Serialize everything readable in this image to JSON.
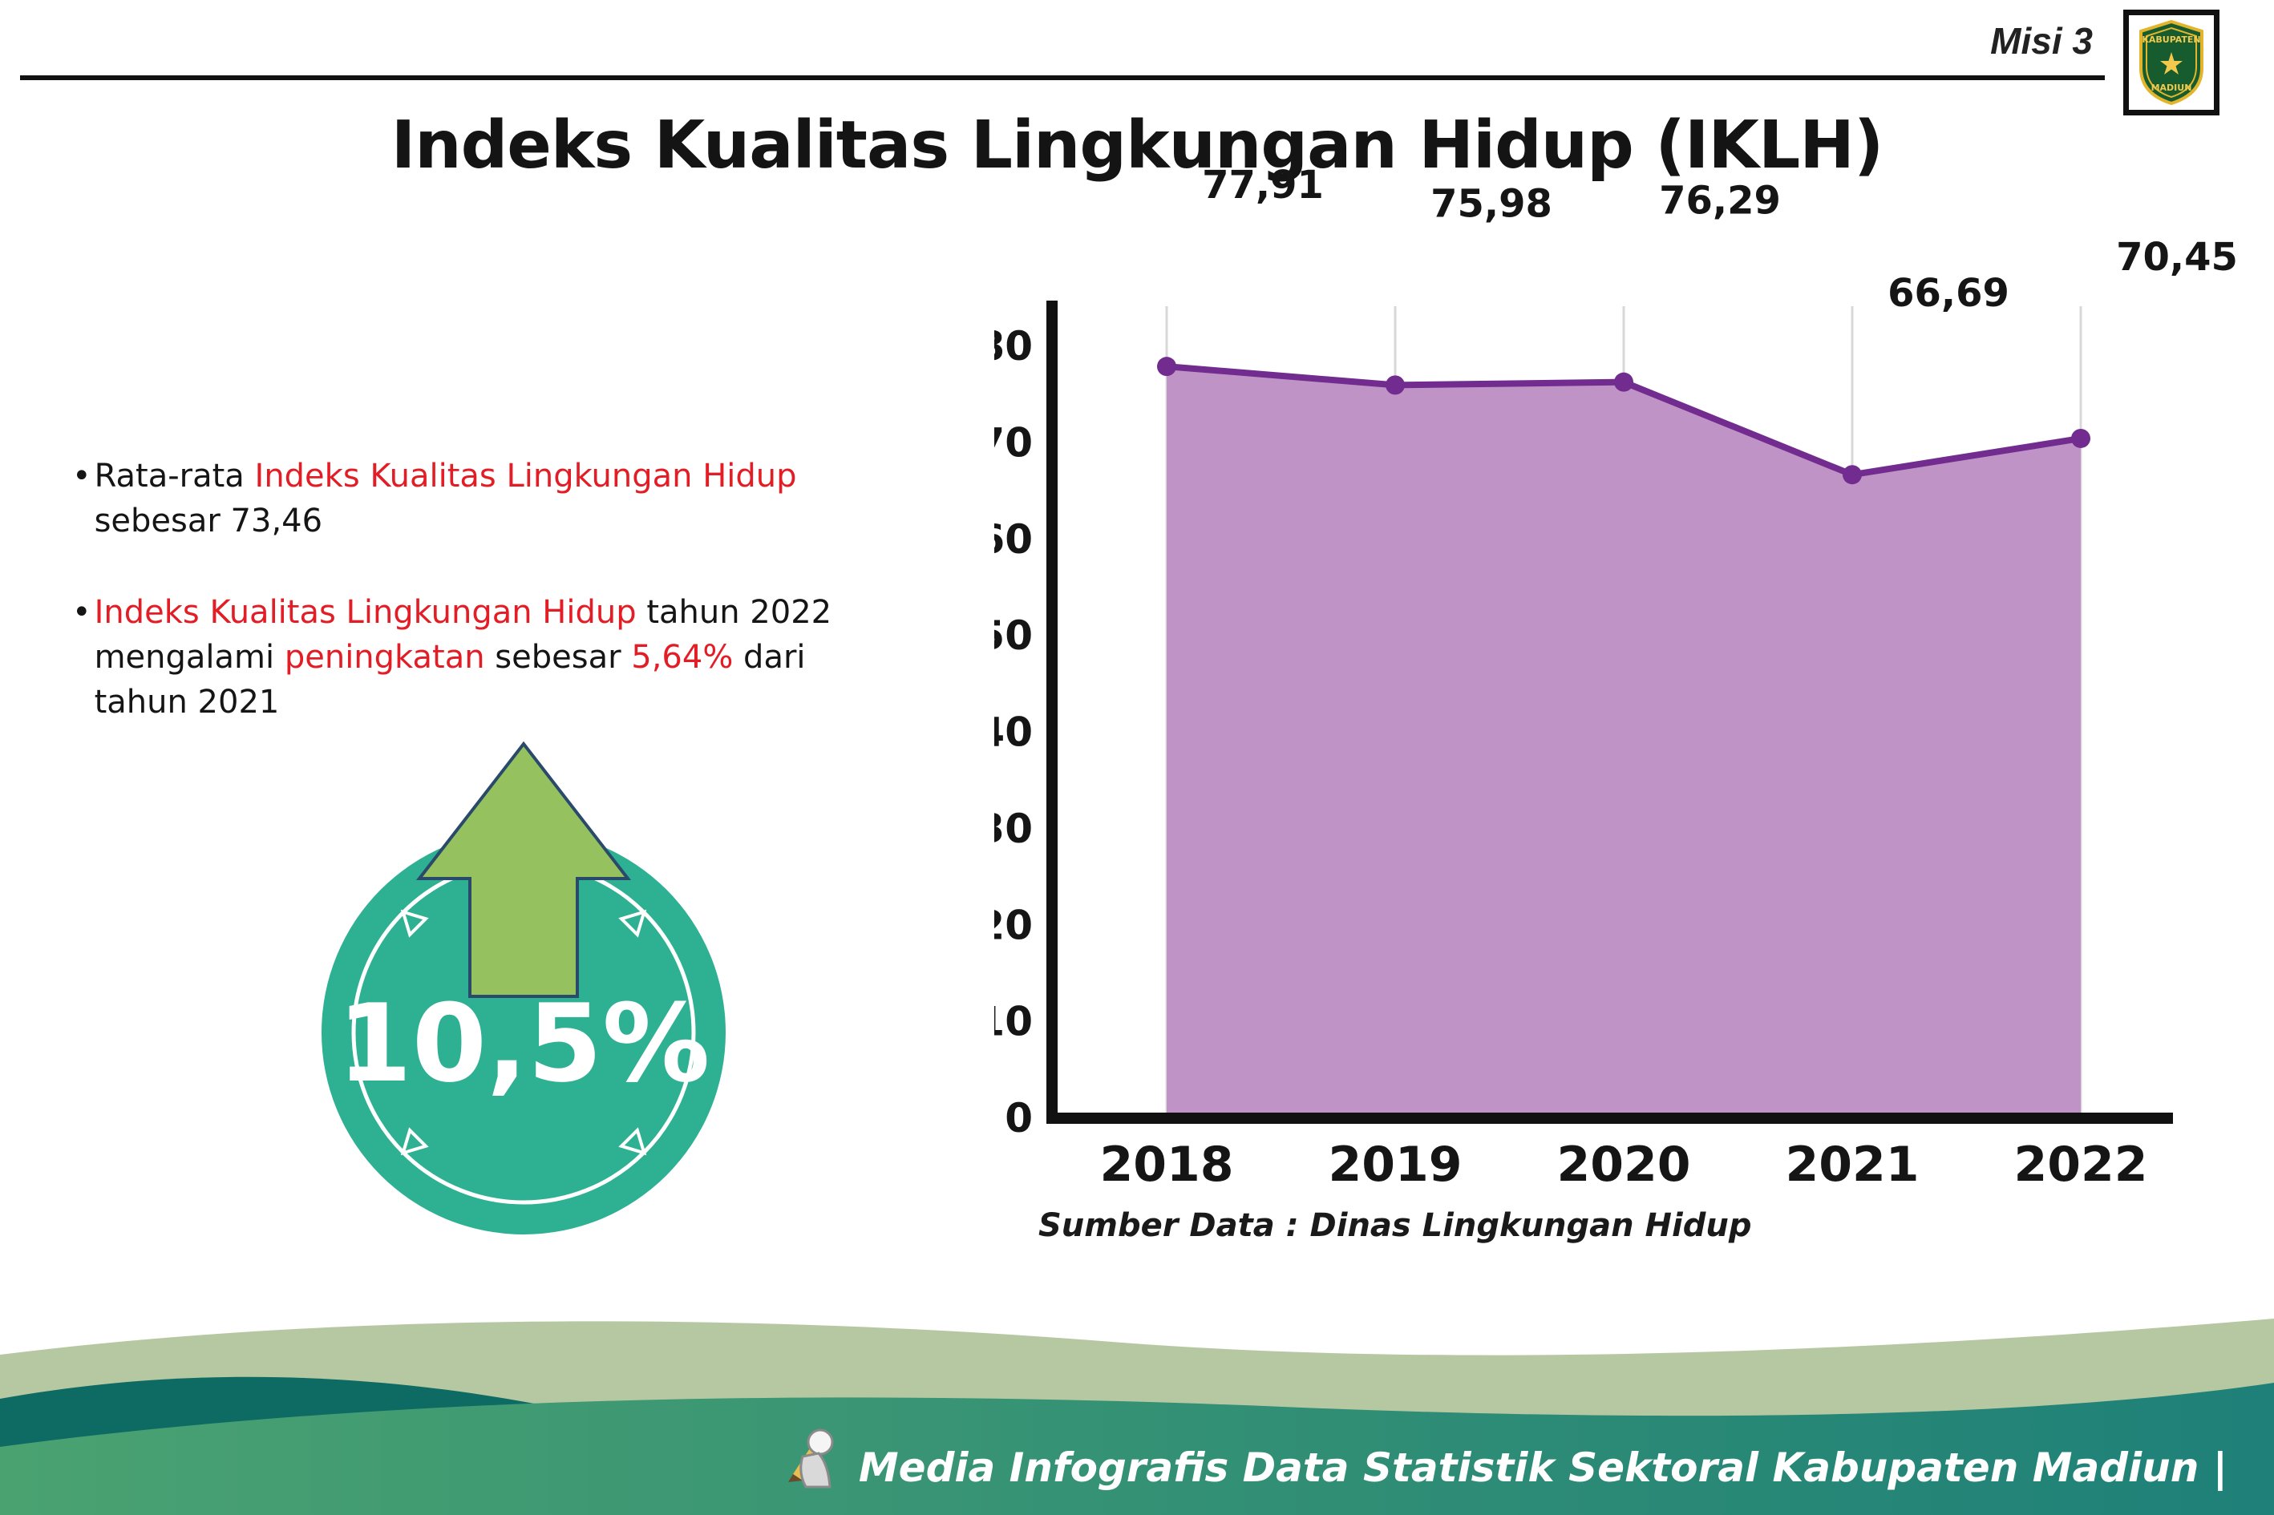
{
  "header": {
    "misi": "Misi 3",
    "title": "Indeks Kualitas Lingkungan Hidup (IKLH)",
    "logo_top": "KABUPATEN",
    "logo_bottom": "MADIUN"
  },
  "bullets": {
    "marker": "•",
    "item1": {
      "seg1": "Rata-rata ",
      "seg2": "Indeks Kualitas Lingkungan Hidup",
      "seg3": " sebesar 73,46"
    },
    "item2": {
      "seg1": "Indeks Kualitas Lingkungan Hidup",
      "seg2": " tahun 2022 mengalami ",
      "seg3": "peningkatan",
      "seg4": " sebesar ",
      "seg5": "5,64%",
      "seg6": " dari tahun 2021"
    }
  },
  "badge": {
    "value": "10,5%"
  },
  "chart_data": {
    "type": "area",
    "title": "Indeks Kualitas Lingkungan Hidup (IKLH)",
    "x": [
      "2018",
      "2019",
      "2020",
      "2021",
      "2022"
    ],
    "values": [
      77.91,
      75.98,
      76.29,
      66.69,
      70.45
    ],
    "value_labels": [
      "77,91",
      "75,98",
      "76,29",
      "66,69",
      "70,45"
    ],
    "xlabel": "",
    "ylabel": "",
    "ylim": [
      0,
      80
    ],
    "ytick_step": 10,
    "grid": "vertical",
    "legend": "none",
    "fill_color": "#bf93c6",
    "line_color": "#722b8e",
    "source_note": "Sumber Data : Dinas Lingkungan Hidup"
  },
  "footer": {
    "credit": "Media Infografis Data Statistik Sektoral Kabupaten Madiun |"
  },
  "colors": {
    "accent_red": "#e31d25",
    "badge_teal": "#2eb092",
    "arrow_green": "#95c25e",
    "footer_sage": "#b6c8a2",
    "footer_dark_teal": "#0e6b63",
    "footer_green": "#4aa271",
    "footer_teal": "#1e8078"
  }
}
